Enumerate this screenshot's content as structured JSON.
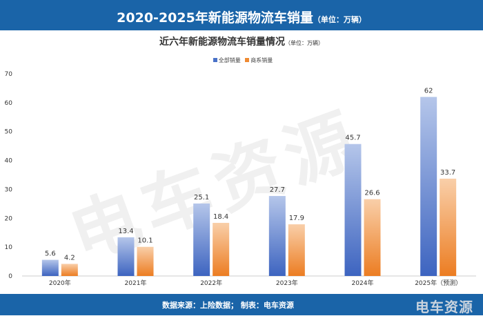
{
  "header": {
    "title": "2020-2025年新能源物流车销量",
    "unit": "（单位：万辆）"
  },
  "footer": {
    "source": "数据来源：上险数据； 制表：电车资源",
    "logo": "电车资源"
  },
  "watermark": "电车资源",
  "chart_data": {
    "type": "bar",
    "title": "近六年新能源物流车销量情况",
    "title_unit": "（单位：万辆）",
    "categories": [
      "2020年",
      "2021年",
      "2022年",
      "2023年",
      "2024年",
      "2025年（预测）"
    ],
    "series": [
      {
        "name": "全部销量",
        "color": "#4a72c8",
        "values": [
          5.6,
          13.4,
          25.1,
          27.7,
          45.7,
          62
        ]
      },
      {
        "name": "商系销量",
        "color": "#ef8a32",
        "values": [
          4.2,
          10.1,
          18.4,
          17.9,
          26.6,
          33.7
        ]
      }
    ],
    "ylim": [
      0,
      70
    ],
    "yticks": [
      0,
      10,
      20,
      30,
      40,
      50,
      60,
      70
    ],
    "legend": "top-center",
    "grid": false
  }
}
